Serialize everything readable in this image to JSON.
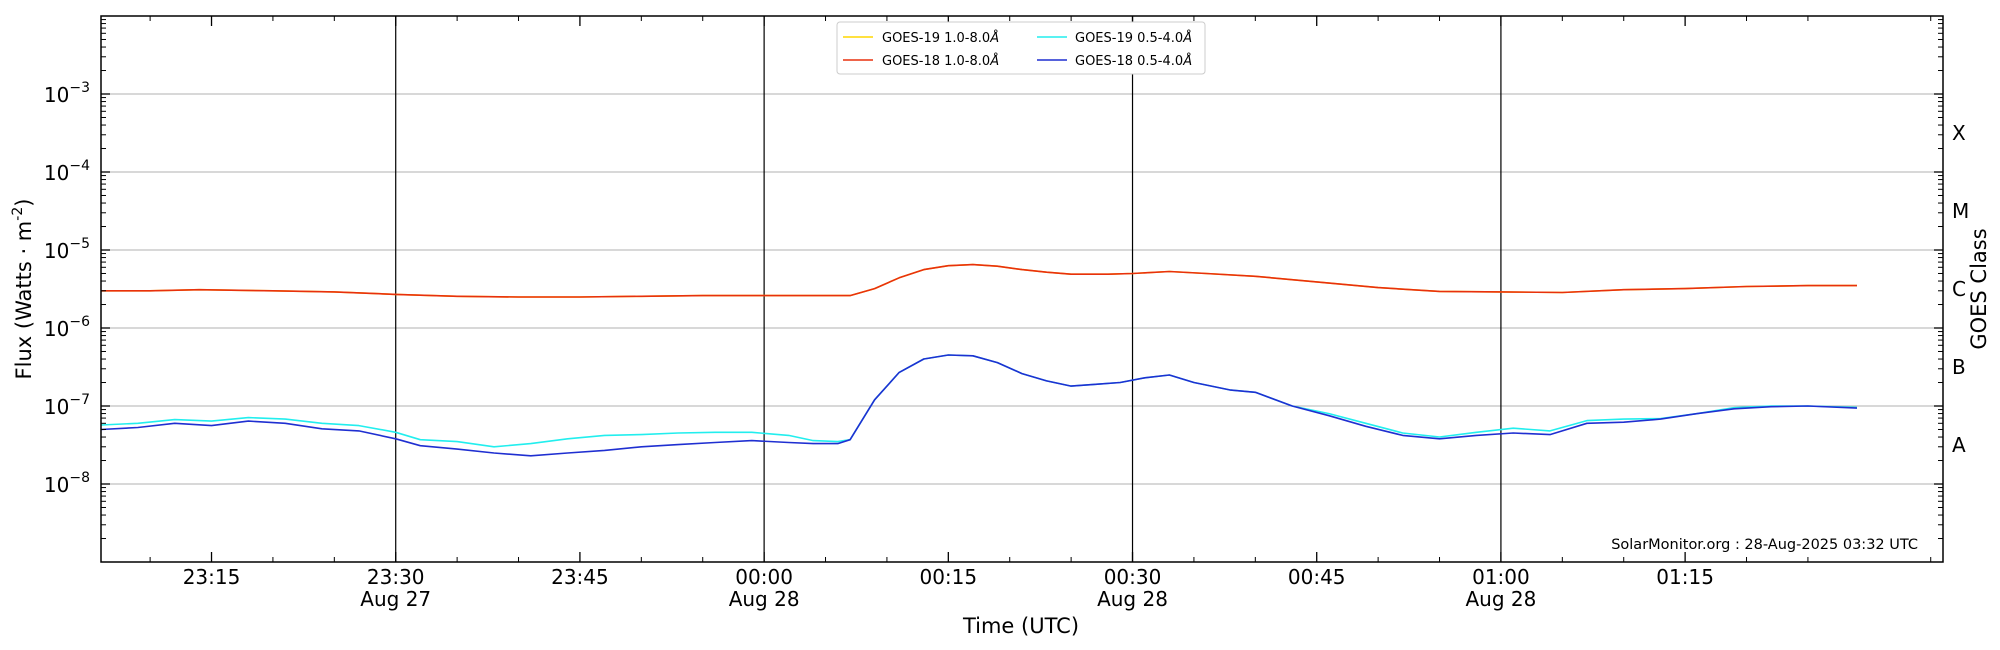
{
  "chart_data": {
    "type": "line",
    "title": "",
    "xlabel": "Time (UTC)",
    "ylabel_main": "Flux (Watts",
    "ylabel_unit": "m",
    "ylabel_exp": "-2",
    "ylabel_close": ")",
    "y2label": "GOES Class",
    "yscale": "log",
    "ylim": [
      1e-09,
      0.01
    ],
    "xlim_minutes": [
      -54,
      96
    ],
    "credit": "SolarMonitor.org : 28-Aug-2025 03:32 UTC",
    "grid": "horizontal",
    "legend_placement": "top-center",
    "y_ticks": [
      {
        "exp": -3,
        "base": "10",
        "sup": "−3"
      },
      {
        "exp": -4,
        "base": "10",
        "sup": "−4"
      },
      {
        "exp": -5,
        "base": "10",
        "sup": "−5"
      },
      {
        "exp": -6,
        "base": "10",
        "sup": "−6"
      },
      {
        "exp": -7,
        "base": "10",
        "sup": "−7"
      },
      {
        "exp": -8,
        "base": "10",
        "sup": "−8"
      }
    ],
    "x_ticks": [
      {
        "t": -45,
        "label": "23:15",
        "sub": ""
      },
      {
        "t": -30,
        "label": "23:30",
        "sub": "Aug 27"
      },
      {
        "t": -15,
        "label": "23:45",
        "sub": ""
      },
      {
        "t": 0,
        "label": "00:00",
        "sub": "Aug 28"
      },
      {
        "t": 15,
        "label": "00:15",
        "sub": ""
      },
      {
        "t": 30,
        "label": "00:30",
        "sub": "Aug 28"
      },
      {
        "t": 45,
        "label": "00:45",
        "sub": ""
      },
      {
        "t": 60,
        "label": "01:00",
        "sub": "Aug 28"
      },
      {
        "t": 75,
        "label": "01:15",
        "sub": ""
      }
    ],
    "vlines": [
      -30,
      0,
      30,
      60
    ],
    "goes_classes": [
      {
        "label": "X",
        "exp": -3.5
      },
      {
        "label": "M",
        "exp": -4.5
      },
      {
        "label": "C",
        "exp": -5.5
      },
      {
        "label": "B",
        "exp": -6.5
      },
      {
        "label": "A",
        "exp": -7.5
      }
    ],
    "series": [
      {
        "name": "GOES-19 1.0-8.0",
        "color": "#ffd700",
        "values": [
          [
            -54,
            3e-06
          ],
          [
            -50,
            3e-06
          ],
          [
            -46,
            3.1e-06
          ],
          [
            -40,
            3e-06
          ],
          [
            -35,
            2.9e-06
          ],
          [
            -30,
            2.7e-06
          ],
          [
            -25,
            2.55e-06
          ],
          [
            -20,
            2.5e-06
          ],
          [
            -15,
            2.5e-06
          ],
          [
            -10,
            2.55e-06
          ],
          [
            -5,
            2.6e-06
          ],
          [
            0,
            2.6e-06
          ],
          [
            4,
            2.6e-06
          ],
          [
            7,
            2.6e-06
          ],
          [
            9,
            3.2e-06
          ],
          [
            11,
            4.4e-06
          ],
          [
            13,
            5.6e-06
          ],
          [
            15,
            6.3e-06
          ],
          [
            17,
            6.5e-06
          ],
          [
            19,
            6.2e-06
          ],
          [
            21,
            5.6e-06
          ],
          [
            23,
            5.2e-06
          ],
          [
            25,
            4.9e-06
          ],
          [
            28,
            4.9e-06
          ],
          [
            30,
            5e-06
          ],
          [
            33,
            5.3e-06
          ],
          [
            36,
            5e-06
          ],
          [
            40,
            4.6e-06
          ],
          [
            45,
            3.9e-06
          ],
          [
            50,
            3.3e-06
          ],
          [
            55,
            2.95e-06
          ],
          [
            60,
            2.9e-06
          ],
          [
            65,
            2.85e-06
          ],
          [
            70,
            3.1e-06
          ],
          [
            75,
            3.2e-06
          ],
          [
            80,
            3.4e-06
          ],
          [
            85,
            3.5e-06
          ],
          [
            89,
            3.5e-06
          ]
        ]
      },
      {
        "name": "GOES-18 1.0-8.0",
        "color": "#e8300e",
        "values": [
          [
            -54,
            3e-06
          ],
          [
            -50,
            3e-06
          ],
          [
            -46,
            3.1e-06
          ],
          [
            -40,
            3e-06
          ],
          [
            -35,
            2.9e-06
          ],
          [
            -30,
            2.7e-06
          ],
          [
            -25,
            2.55e-06
          ],
          [
            -20,
            2.5e-06
          ],
          [
            -15,
            2.5e-06
          ],
          [
            -10,
            2.55e-06
          ],
          [
            -5,
            2.6e-06
          ],
          [
            0,
            2.6e-06
          ],
          [
            4,
            2.6e-06
          ],
          [
            7,
            2.6e-06
          ],
          [
            9,
            3.2e-06
          ],
          [
            11,
            4.4e-06
          ],
          [
            13,
            5.6e-06
          ],
          [
            15,
            6.3e-06
          ],
          [
            17,
            6.5e-06
          ],
          [
            19,
            6.2e-06
          ],
          [
            21,
            5.6e-06
          ],
          [
            23,
            5.2e-06
          ],
          [
            25,
            4.9e-06
          ],
          [
            28,
            4.9e-06
          ],
          [
            30,
            5e-06
          ],
          [
            33,
            5.3e-06
          ],
          [
            36,
            5e-06
          ],
          [
            40,
            4.6e-06
          ],
          [
            45,
            3.9e-06
          ],
          [
            50,
            3.3e-06
          ],
          [
            55,
            2.95e-06
          ],
          [
            60,
            2.9e-06
          ],
          [
            65,
            2.85e-06
          ],
          [
            70,
            3.1e-06
          ],
          [
            75,
            3.2e-06
          ],
          [
            80,
            3.4e-06
          ],
          [
            85,
            3.5e-06
          ],
          [
            89,
            3.5e-06
          ]
        ]
      },
      {
        "name": "GOES-19 0.5-4.0",
        "color": "#22eeee",
        "values": [
          [
            -54,
            5.7e-08
          ],
          [
            -51,
            6e-08
          ],
          [
            -48,
            6.7e-08
          ],
          [
            -45,
            6.4e-08
          ],
          [
            -42,
            7.1e-08
          ],
          [
            -39,
            6.8e-08
          ],
          [
            -36,
            6e-08
          ],
          [
            -33,
            5.6e-08
          ],
          [
            -30,
            4.6e-08
          ],
          [
            -28,
            3.7e-08
          ],
          [
            -25,
            3.5e-08
          ],
          [
            -22,
            3e-08
          ],
          [
            -19,
            3.3e-08
          ],
          [
            -16,
            3.8e-08
          ],
          [
            -13,
            4.2e-08
          ],
          [
            -10,
            4.3e-08
          ],
          [
            -7,
            4.5e-08
          ],
          [
            -4,
            4.6e-08
          ],
          [
            -1,
            4.6e-08
          ],
          [
            2,
            4.2e-08
          ],
          [
            4,
            3.6e-08
          ],
          [
            6,
            3.5e-08
          ],
          [
            7,
            3.7e-08
          ],
          [
            9,
            1.2e-07
          ],
          [
            11,
            2.7e-07
          ],
          [
            13,
            4e-07
          ],
          [
            15,
            4.5e-07
          ],
          [
            17,
            4.4e-07
          ],
          [
            19,
            3.6e-07
          ],
          [
            21,
            2.6e-07
          ],
          [
            23,
            2.1e-07
          ],
          [
            25,
            1.8e-07
          ],
          [
            27,
            1.9e-07
          ],
          [
            29,
            2e-07
          ],
          [
            31,
            2.3e-07
          ],
          [
            33,
            2.5e-07
          ],
          [
            35,
            2e-07
          ],
          [
            38,
            1.6e-07
          ],
          [
            40,
            1.5e-07
          ],
          [
            43,
            1e-07
          ],
          [
            46,
            8e-08
          ],
          [
            49,
            6e-08
          ],
          [
            52,
            4.5e-08
          ],
          [
            55,
            4e-08
          ],
          [
            58,
            4.6e-08
          ],
          [
            61,
            5.2e-08
          ],
          [
            64,
            4.8e-08
          ],
          [
            67,
            6.5e-08
          ],
          [
            70,
            6.8e-08
          ],
          [
            73,
            6.9e-08
          ],
          [
            76,
            8e-08
          ],
          [
            79,
            9.5e-08
          ],
          [
            82,
            1e-07
          ],
          [
            85,
            1e-07
          ],
          [
            89,
            9.6e-08
          ]
        ]
      },
      {
        "name": "GOES-18 0.5-4.0",
        "color": "#1f2fd1",
        "values": [
          [
            -54,
            5e-08
          ],
          [
            -51,
            5.3e-08
          ],
          [
            -48,
            6e-08
          ],
          [
            -45,
            5.6e-08
          ],
          [
            -42,
            6.4e-08
          ],
          [
            -39,
            6e-08
          ],
          [
            -36,
            5.1e-08
          ],
          [
            -33,
            4.8e-08
          ],
          [
            -30,
            3.8e-08
          ],
          [
            -28,
            3.1e-08
          ],
          [
            -25,
            2.8e-08
          ],
          [
            -22,
            2.5e-08
          ],
          [
            -19,
            2.3e-08
          ],
          [
            -16,
            2.5e-08
          ],
          [
            -13,
            2.7e-08
          ],
          [
            -10,
            3e-08
          ],
          [
            -7,
            3.2e-08
          ],
          [
            -4,
            3.4e-08
          ],
          [
            -1,
            3.6e-08
          ],
          [
            2,
            3.4e-08
          ],
          [
            4,
            3.3e-08
          ],
          [
            6,
            3.3e-08
          ],
          [
            7,
            3.7e-08
          ],
          [
            9,
            1.2e-07
          ],
          [
            11,
            2.7e-07
          ],
          [
            13,
            4e-07
          ],
          [
            15,
            4.5e-07
          ],
          [
            17,
            4.4e-07
          ],
          [
            19,
            3.6e-07
          ],
          [
            21,
            2.6e-07
          ],
          [
            23,
            2.1e-07
          ],
          [
            25,
            1.8e-07
          ],
          [
            27,
            1.9e-07
          ],
          [
            29,
            2e-07
          ],
          [
            31,
            2.3e-07
          ],
          [
            33,
            2.5e-07
          ],
          [
            35,
            2e-07
          ],
          [
            38,
            1.6e-07
          ],
          [
            40,
            1.5e-07
          ],
          [
            43,
            1e-07
          ],
          [
            46,
            7.5e-08
          ],
          [
            49,
            5.5e-08
          ],
          [
            52,
            4.2e-08
          ],
          [
            55,
            3.8e-08
          ],
          [
            58,
            4.2e-08
          ],
          [
            61,
            4.5e-08
          ],
          [
            64,
            4.3e-08
          ],
          [
            67,
            6e-08
          ],
          [
            70,
            6.2e-08
          ],
          [
            73,
            6.8e-08
          ],
          [
            76,
            8e-08
          ],
          [
            79,
            9.2e-08
          ],
          [
            82,
            9.8e-08
          ],
          [
            85,
            1e-07
          ],
          [
            89,
            9.4e-08
          ]
        ]
      }
    ]
  }
}
